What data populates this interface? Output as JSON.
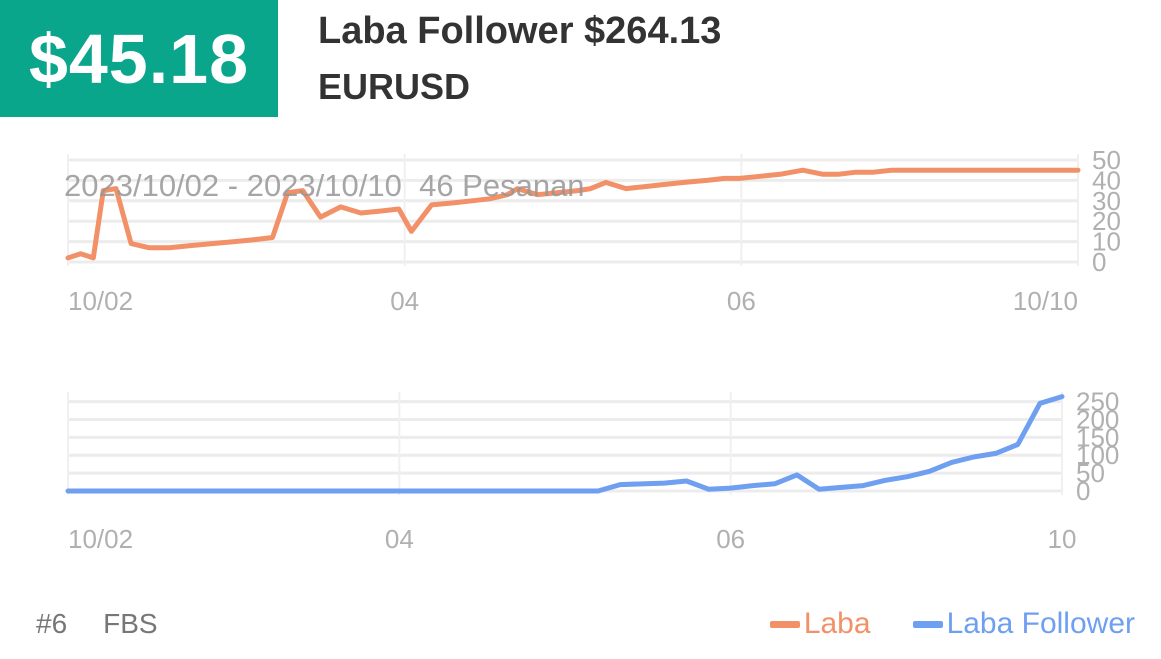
{
  "header": {
    "badge_value": "$45.18",
    "title": "Laba Follower $264.13",
    "symbol": "EURUSD"
  },
  "overlay_text": "2023/10/02 - 2023/10/10  46 Pesanan",
  "footer": {
    "rank": "#6",
    "broker": "FBS"
  },
  "colors": {
    "accent": "#0aa68c",
    "laba": "#f29068",
    "follower": "#6e9ff0"
  },
  "chart_data": [
    {
      "type": "line",
      "x_tick_labels": [
        "10/02",
        "04",
        "06",
        "10/10"
      ],
      "y_ticks": [
        0,
        10,
        20,
        30,
        40,
        50
      ],
      "ylim": [
        0,
        50
      ],
      "grid": true,
      "series": [
        {
          "name": "Laba",
          "x": [
            0,
            0.5,
            1,
            1.4,
            1.9,
            2.5,
            3.2,
            4,
            4.8,
            5.7,
            6.6,
            7.4,
            8.1,
            8.7,
            9.3,
            10,
            10.8,
            11.6,
            12.4,
            13.1,
            13.6,
            14.4,
            15.3,
            16,
            16.7,
            17.4,
            17.8,
            18.6,
            19.4,
            20.2,
            20.7,
            21.3,
            22.1,
            22.9,
            23.6,
            24.4,
            25.3,
            26,
            26.6,
            27.4,
            28.2,
            29.1,
            29.9,
            30.5,
            31.2,
            31.9,
            32.6,
            33.3,
            34,
            34.6,
            35.3,
            36,
            36.8,
            37.4,
            38.1,
            38.8,
            39.5,
            40
          ],
          "values": [
            2,
            4,
            2,
            35,
            36,
            9,
            7,
            7,
            8,
            9,
            10,
            11,
            12,
            34,
            35,
            22,
            27,
            24,
            25,
            26,
            15,
            28,
            29,
            30,
            31,
            33,
            36,
            33,
            34,
            35,
            36,
            39,
            36,
            37,
            38,
            39,
            40,
            41,
            41,
            42,
            43,
            45,
            43,
            43,
            44,
            44,
            45,
            45,
            45,
            45,
            45,
            45,
            45,
            45,
            45,
            45,
            45,
            45
          ]
        }
      ]
    },
    {
      "type": "line",
      "x_tick_labels": [
        "10/02",
        "04",
        "06",
        "10"
      ],
      "y_ticks": [
        0,
        50,
        100,
        150,
        200,
        250
      ],
      "ylim": [
        0,
        260
      ],
      "grid": true,
      "series": [
        {
          "name": "Laba Follower",
          "x": [
            0,
            24,
            25,
            27,
            28,
            29,
            30,
            31,
            32,
            33,
            34,
            35,
            36,
            37,
            38,
            39,
            40,
            41,
            42,
            43,
            44,
            45
          ],
          "values": [
            0,
            0,
            18,
            22,
            28,
            5,
            8,
            15,
            20,
            45,
            5,
            10,
            15,
            30,
            40,
            55,
            80,
            95,
            105,
            130,
            245,
            264
          ]
        }
      ]
    }
  ]
}
